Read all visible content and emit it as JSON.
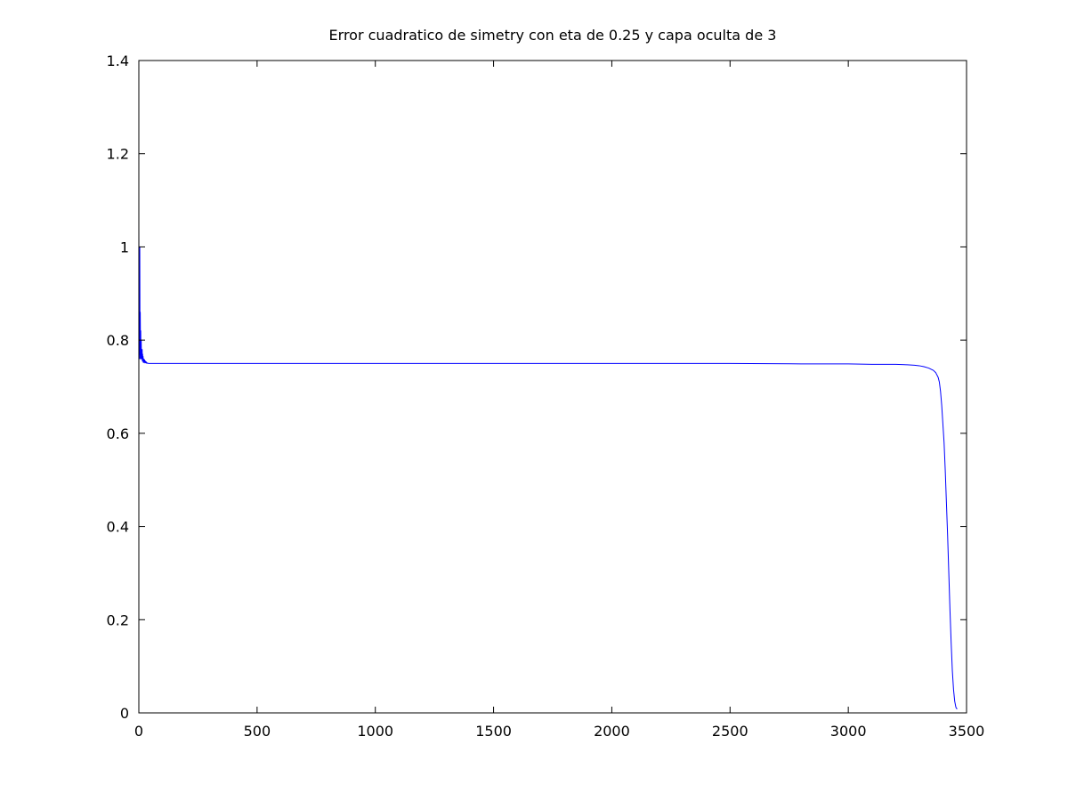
{
  "chart_data": {
    "type": "line",
    "title": "Error cuadratico de simetry con eta de 0.25 y capa oculta de 3",
    "xlabel": "",
    "ylabel": "",
    "xlim": [
      0,
      3500
    ],
    "ylim": [
      0,
      1.4
    ],
    "x_ticks": [
      0,
      500,
      1000,
      1500,
      2000,
      2500,
      3000,
      3500
    ],
    "y_ticks": [
      0,
      0.2,
      0.4,
      0.6,
      0.8,
      1,
      1.2,
      1.4
    ],
    "x_tick_labels": [
      "0",
      "500",
      "1000",
      "1500",
      "2000",
      "2500",
      "3000",
      "3500"
    ],
    "y_tick_labels": [
      "0",
      "0.2",
      "0.4",
      "0.6",
      "0.8",
      "1",
      "1.2",
      "1.4"
    ],
    "grid": false,
    "legend": "none",
    "series": [
      {
        "color": "#0000ff",
        "x": [
          0,
          1,
          2,
          3,
          4,
          5,
          6,
          7,
          8,
          9,
          10,
          11,
          12,
          13,
          14,
          15,
          16,
          17,
          18,
          19,
          20,
          22,
          24,
          26,
          28,
          30,
          32,
          34,
          36,
          40,
          50,
          100,
          500,
          1000,
          1500,
          2000,
          2500,
          2800,
          3000,
          3100,
          3200,
          3250,
          3280,
          3300,
          3320,
          3340,
          3360,
          3370,
          3380,
          3385,
          3390,
          3395,
          3400,
          3405,
          3410,
          3415,
          3420,
          3425,
          3430,
          3435,
          3440,
          3445,
          3450,
          3455,
          3460
        ],
        "y": [
          1.04,
          0.76,
          0.88,
          0.77,
          1.0,
          0.76,
          0.86,
          0.78,
          0.82,
          0.76,
          0.8,
          0.76,
          0.77,
          0.76,
          0.78,
          0.755,
          0.77,
          0.755,
          0.765,
          0.752,
          0.76,
          0.752,
          0.758,
          0.751,
          0.755,
          0.751,
          0.753,
          0.75,
          0.751,
          0.75,
          0.75,
          0.75,
          0.75,
          0.75,
          0.75,
          0.75,
          0.75,
          0.749,
          0.749,
          0.748,
          0.748,
          0.747,
          0.746,
          0.745,
          0.743,
          0.74,
          0.735,
          0.73,
          0.72,
          0.71,
          0.69,
          0.66,
          0.62,
          0.58,
          0.52,
          0.45,
          0.38,
          0.3,
          0.22,
          0.15,
          0.09,
          0.05,
          0.025,
          0.012,
          0.008
        ]
      }
    ]
  }
}
